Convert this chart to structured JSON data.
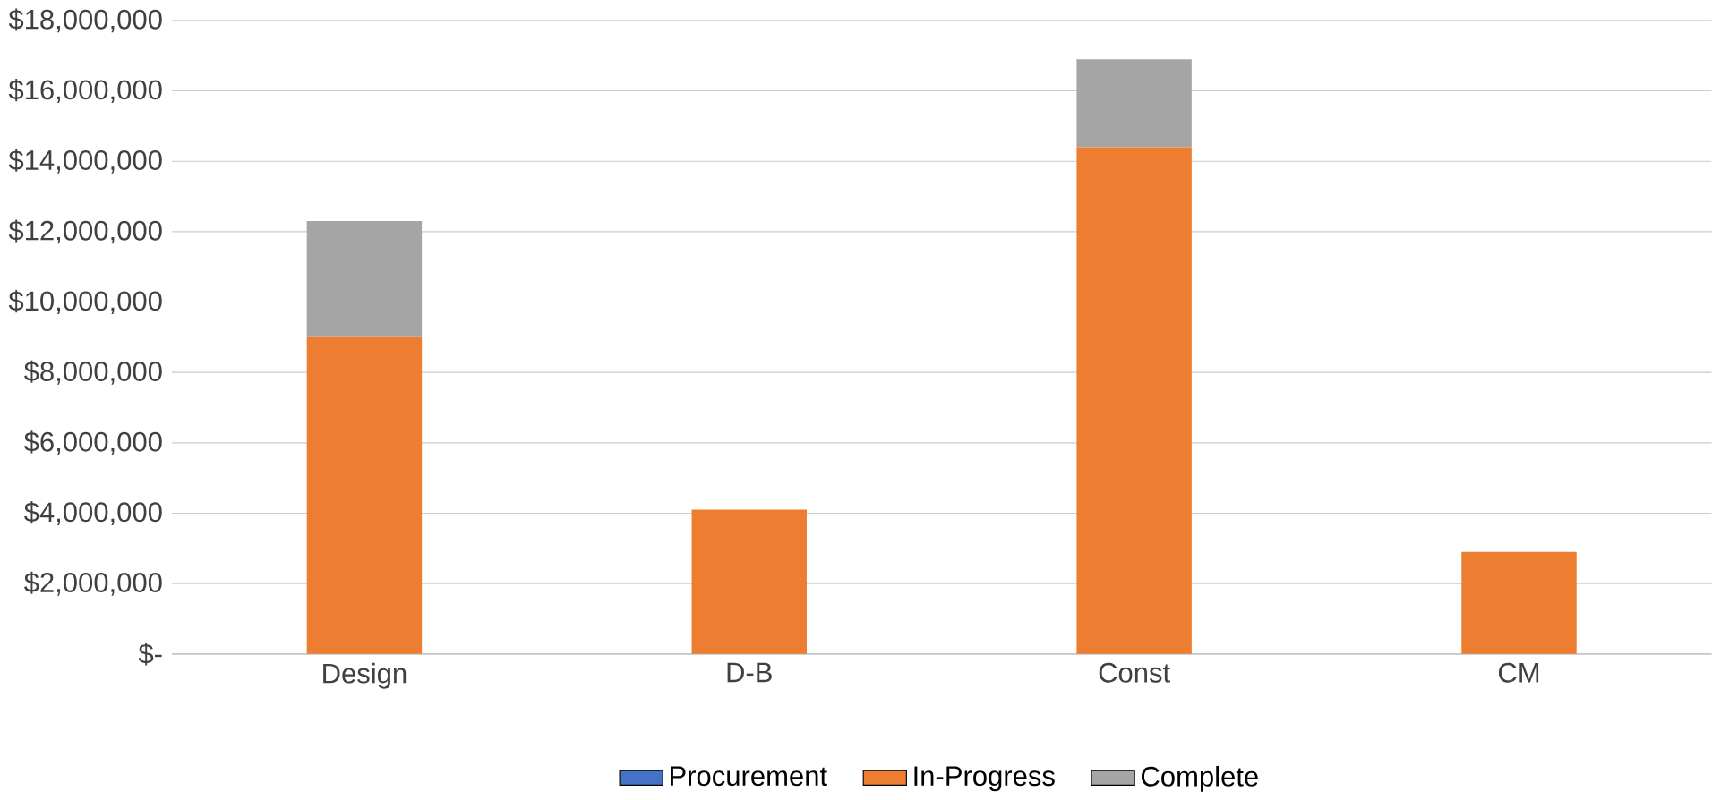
{
  "chart_data": {
    "type": "bar",
    "stacked": true,
    "categories": [
      "Design",
      "D-B",
      "Const",
      "CM"
    ],
    "series": [
      {
        "name": "Procurement",
        "color": "#4472c4",
        "values": [
          0,
          0,
          0,
          0
        ]
      },
      {
        "name": "In-Progress",
        "color": "#ed7d31",
        "values": [
          9000000,
          4100000,
          14400000,
          2900000
        ]
      },
      {
        "name": "Complete",
        "color": "#a5a5a5",
        "values": [
          3300000,
          null,
          2500000,
          null
        ]
      }
    ],
    "ylim": [
      0,
      18000000
    ],
    "yticks": [
      {
        "value": 0,
        "label": "$-"
      },
      {
        "value": 2000000,
        "label": "$2,000,000"
      },
      {
        "value": 4000000,
        "label": "$4,000,000"
      },
      {
        "value": 6000000,
        "label": "$6,000,000"
      },
      {
        "value": 8000000,
        "label": "$8,000,000"
      },
      {
        "value": 10000000,
        "label": "$10,000,000"
      },
      {
        "value": 12000000,
        "label": "$12,000,000"
      },
      {
        "value": 14000000,
        "label": "$14,000,000"
      },
      {
        "value": 16000000,
        "label": "$16,000,000"
      },
      {
        "value": 18000000,
        "label": "$18,000,000"
      }
    ],
    "grid": "y",
    "legend": "bottom"
  }
}
